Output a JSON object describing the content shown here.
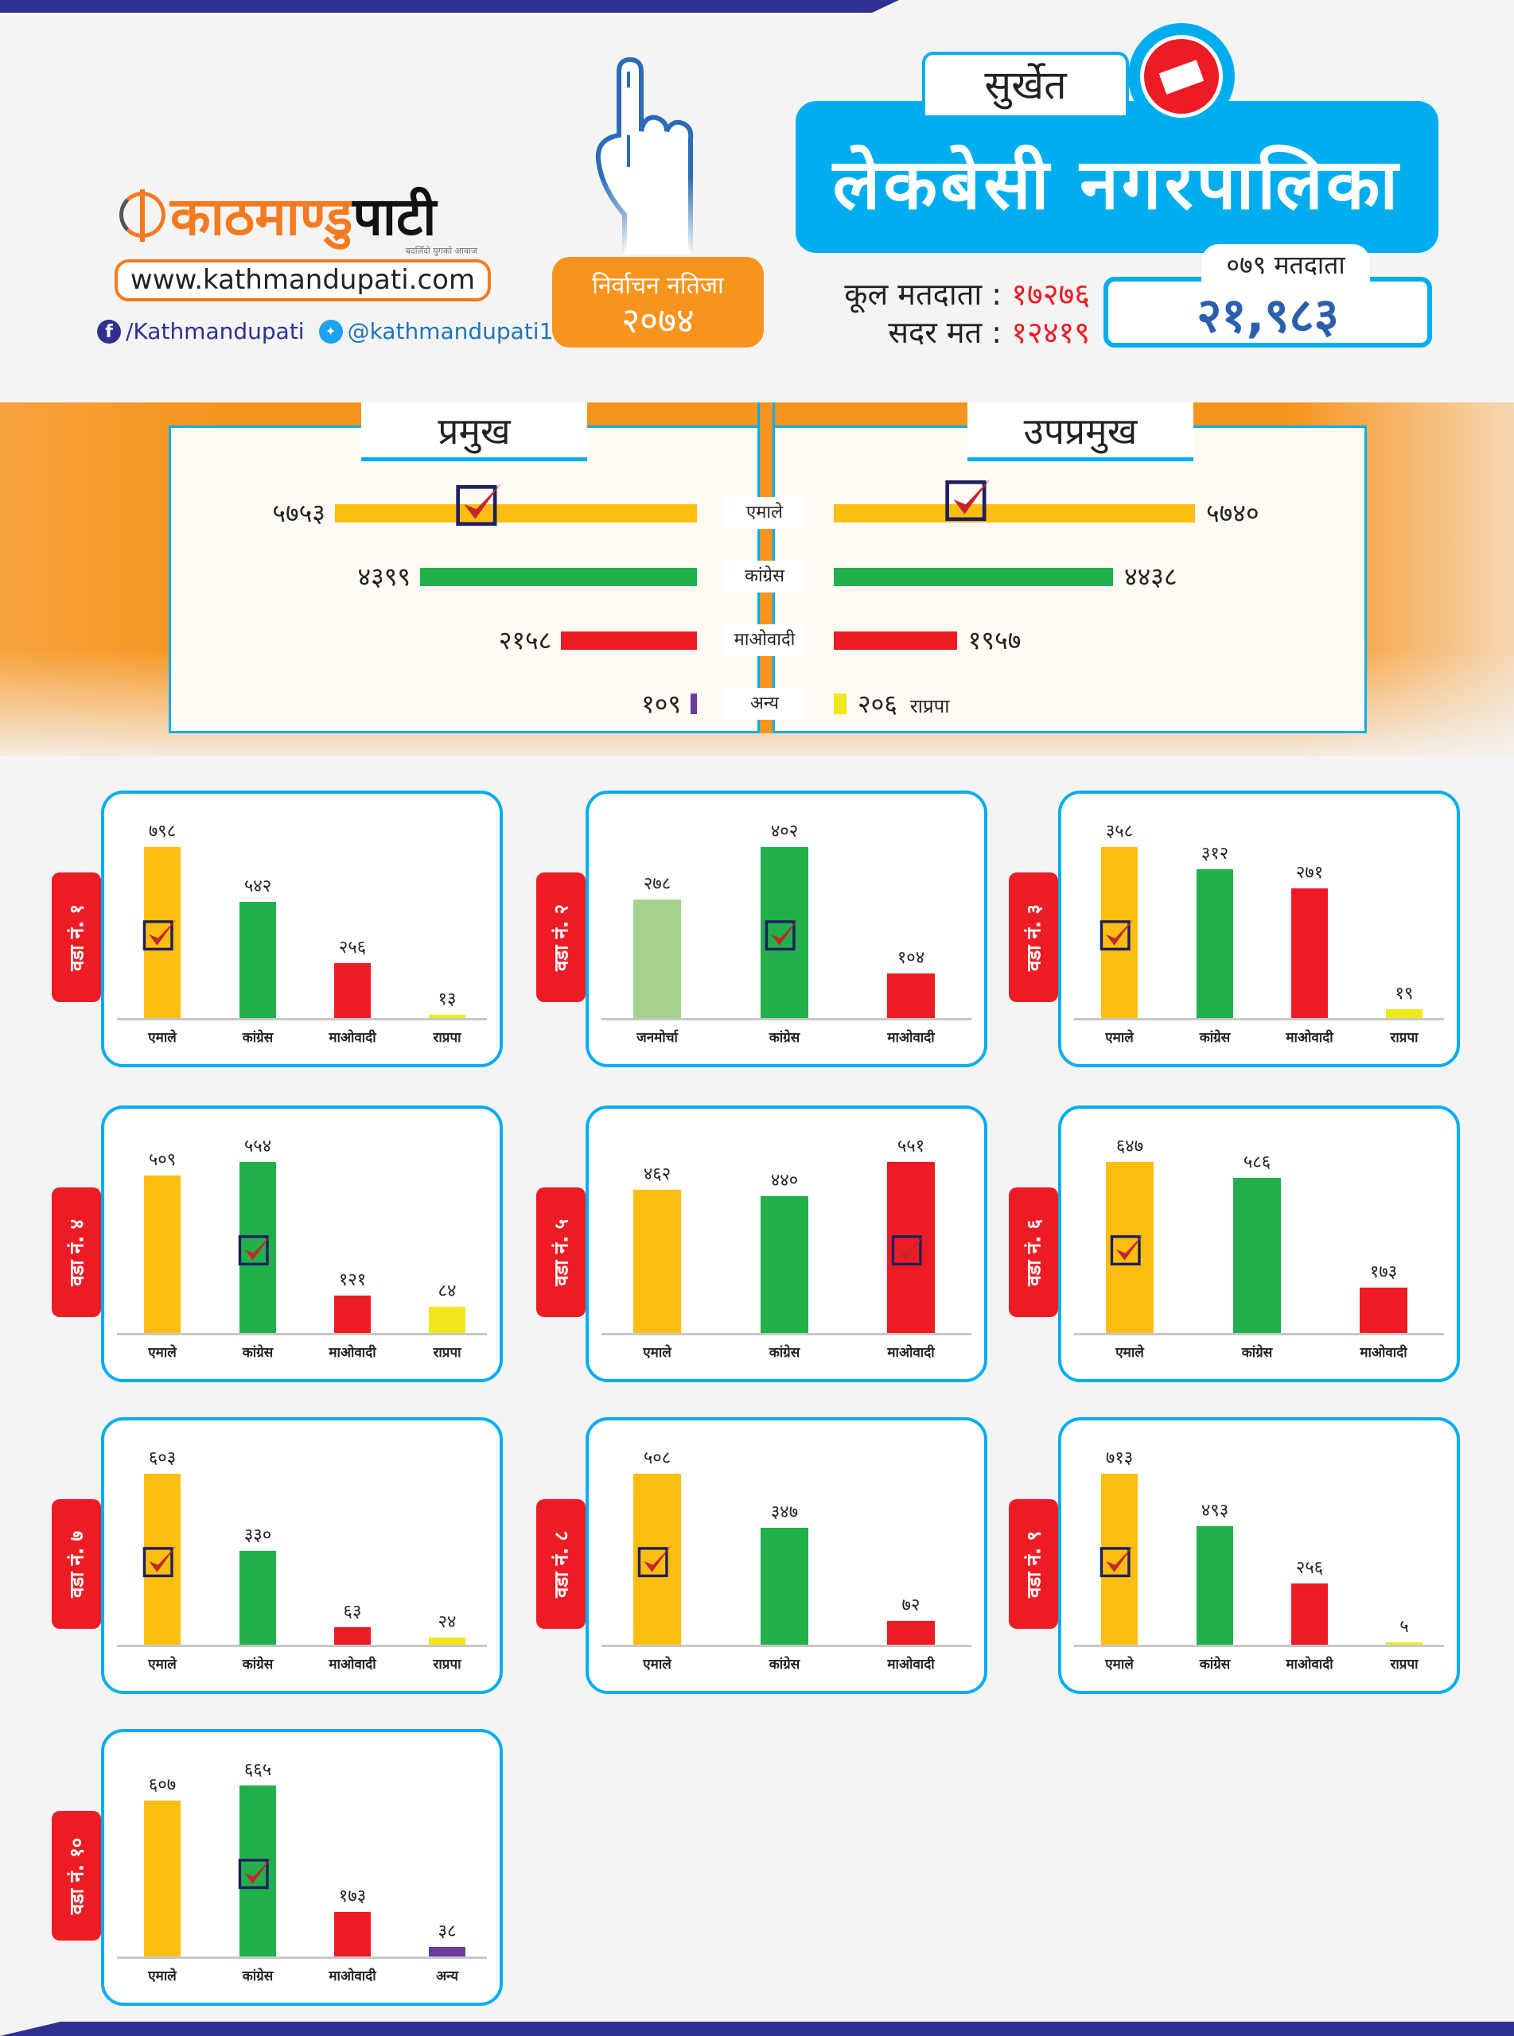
{
  "brand": {
    "logo_part1": "काठमाण्डु",
    "logo_part2": "पाटी",
    "tagline": "बदलिँदो युगको आवाज",
    "url": "www.kathmandupati.com",
    "facebook": "/Kathmandupati",
    "twitter": "@kathmandupati1"
  },
  "badge": {
    "line1": "निर्वाचन नतिजा",
    "line2": "२०७४"
  },
  "district": "सुर्खेत",
  "municipality": "लेकबेसी नगरपालिका",
  "voters": {
    "total_label": "कूल मतदाता :",
    "total_value": "१७२७६",
    "valid_label": "सदर मत :",
    "valid_value": "१२४१९",
    "v079_label": "०७९ मतदाता",
    "v079_value": "२१,९८३"
  },
  "colors": {
    "uml": "#FDBE11",
    "congress": "#21B04B",
    "maoist": "#ED1C24",
    "rpp": "#F2E71B",
    "other": "#6B3A9A",
    "janamorcha": "#A8D18D",
    "accent_blue": "#00AEEF",
    "accent_orange": "#F7941D"
  },
  "chart_data": {
    "summary": {
      "type": "bar",
      "orientation": "horizontal-mirrored",
      "categories": [
        "एमाले",
        "कांग्रेस",
        "माओवादी",
        "अन्य"
      ],
      "series": [
        {
          "name": "प्रमुख",
          "values": [
            5753,
            4399,
            2158,
            109
          ],
          "labels": [
            "५७५३",
            "४३९९",
            "२१५८",
            "१०९"
          ],
          "colors": [
            "uml",
            "congress",
            "maoist",
            "other"
          ],
          "extra_party": [
            null,
            null,
            null,
            null
          ],
          "winner": 0
        },
        {
          "name": "उपप्रमुख",
          "values": [
            5740,
            4438,
            1957,
            206
          ],
          "labels": [
            "५७४०",
            "४४३८",
            "१९५७",
            "२०६"
          ],
          "colors": [
            "uml",
            "congress",
            "maoist",
            "rpp"
          ],
          "extra_party": [
            null,
            null,
            null,
            "राप्रपा"
          ],
          "winner": 0
        }
      ]
    },
    "wards": [
      {
        "type": "bar",
        "title": "वडा नं. १",
        "categories": [
          "एमाले",
          "कांग्रेस",
          "माओवादी",
          "राप्रपा"
        ],
        "values": [
          798,
          542,
          256,
          13
        ],
        "labels": [
          "७९८",
          "५४२",
          "२५६",
          "१३"
        ],
        "colors": [
          "uml",
          "congress",
          "maoist",
          "rpp"
        ],
        "winner": 0
      },
      {
        "type": "bar",
        "title": "वडा नं. २",
        "categories": [
          "जनमोर्चा",
          "कांग्रेस",
          "माओवादी"
        ],
        "values": [
          278,
          402,
          104
        ],
        "labels": [
          "२७८",
          "४०२",
          "१०४"
        ],
        "colors": [
          "janamorcha",
          "congress",
          "maoist"
        ],
        "winner": 1
      },
      {
        "type": "bar",
        "title": "वडा नं. ३",
        "categories": [
          "एमाले",
          "कांग्रेस",
          "माओवादी",
          "राप्रपा"
        ],
        "values": [
          358,
          312,
          271,
          19
        ],
        "labels": [
          "३५८",
          "३१२",
          "२७१",
          "१९"
        ],
        "colors": [
          "uml",
          "congress",
          "maoist",
          "rpp"
        ],
        "winner": 0
      },
      {
        "type": "bar",
        "title": "वडा नं. ४",
        "categories": [
          "एमाले",
          "कांग्रेस",
          "माओवादी",
          "राप्रपा"
        ],
        "values": [
          509,
          554,
          121,
          84
        ],
        "labels": [
          "५०९",
          "५५४",
          "१२१",
          "८४"
        ],
        "colors": [
          "uml",
          "congress",
          "maoist",
          "rpp"
        ],
        "winner": 1
      },
      {
        "type": "bar",
        "title": "वडा नं. ५",
        "categories": [
          "एमाले",
          "कांग्रेस",
          "माओवादी"
        ],
        "values": [
          462,
          440,
          551
        ],
        "labels": [
          "४६२",
          "४४०",
          "५५१"
        ],
        "colors": [
          "uml",
          "congress",
          "maoist"
        ],
        "winner": 2
      },
      {
        "type": "bar",
        "title": "वडा नं. ६",
        "categories": [
          "एमाले",
          "कांग्रेस",
          "माओवादी"
        ],
        "values": [
          647,
          586,
          173
        ],
        "labels": [
          "६४७",
          "५८६",
          "१७३"
        ],
        "colors": [
          "uml",
          "congress",
          "maoist"
        ],
        "winner": 0
      },
      {
        "type": "bar",
        "title": "वडा नं. ७",
        "categories": [
          "एमाले",
          "कांग्रेस",
          "माओवादी",
          "राप्रपा"
        ],
        "values": [
          603,
          330,
          63,
          24
        ],
        "labels": [
          "६०३",
          "३३०",
          "६३",
          "२४"
        ],
        "colors": [
          "uml",
          "congress",
          "maoist",
          "rpp"
        ],
        "winner": 0
      },
      {
        "type": "bar",
        "title": "वडा नं. ८",
        "categories": [
          "एमाले",
          "कांग्रेस",
          "माओवादी"
        ],
        "values": [
          508,
          347,
          72
        ],
        "labels": [
          "५०८",
          "३४७",
          "७२"
        ],
        "colors": [
          "uml",
          "congress",
          "maoist"
        ],
        "winner": 0
      },
      {
        "type": "bar",
        "title": "वडा नं. ९",
        "categories": [
          "एमाले",
          "कांग्रेस",
          "माओवादी",
          "राप्रपा"
        ],
        "values": [
          713,
          493,
          256,
          5
        ],
        "labels": [
          "७१३",
          "४९३",
          "२५६",
          "५"
        ],
        "colors": [
          "uml",
          "congress",
          "maoist",
          "rpp"
        ],
        "winner": 0
      },
      {
        "type": "bar",
        "title": "वडा नं. १०",
        "categories": [
          "एमाले",
          "कांग्रेस",
          "माओवादी",
          "अन्य"
        ],
        "values": [
          607,
          665,
          173,
          38
        ],
        "labels": [
          "६०७",
          "६६५",
          "१७३",
          "३८"
        ],
        "colors": [
          "uml",
          "congress",
          "maoist",
          "other"
        ],
        "winner": 1
      }
    ]
  }
}
